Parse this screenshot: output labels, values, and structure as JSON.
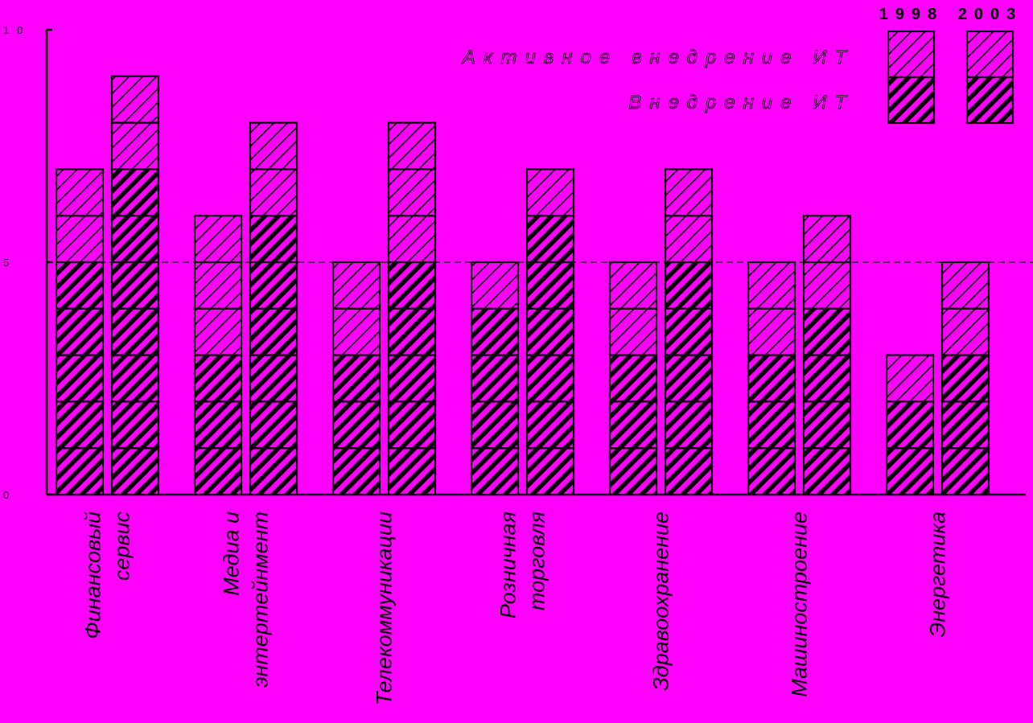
{
  "chart_data": {
    "type": "bar",
    "subtype": "paired-stacked",
    "categories": [
      [
        "Финансовый",
        "сервис"
      ],
      [
        "Медиа и",
        "энтертейнмент"
      ],
      [
        "Телекоммуникации"
      ],
      [
        "Розничная",
        "торговля"
      ],
      [
        "Здравоохранение"
      ],
      [
        "Машиностроение"
      ],
      [
        "Энергетика"
      ]
    ],
    "years": [
      "1998",
      "2003"
    ],
    "series": [
      {
        "name": "Внедрение ИТ",
        "pattern": "dense-hatch",
        "values_1998": [
          5,
          3,
          3,
          4,
          3,
          3,
          2
        ],
        "values_2003": [
          7,
          6,
          5,
          6,
          5,
          4,
          3
        ]
      },
      {
        "name": "Активное внедрение ИТ",
        "pattern": "sparse-hatch",
        "values_1998": [
          2,
          3,
          2,
          1,
          2,
          2,
          1
        ],
        "values_2003": [
          2,
          2,
          3,
          1,
          2,
          2,
          2
        ]
      }
    ],
    "ylim": [
      0,
      10
    ],
    "yticks": [
      "0",
      "5",
      "10"
    ],
    "reference_line": 5,
    "legend_placement": "top-right",
    "background": "#ff00ff"
  }
}
